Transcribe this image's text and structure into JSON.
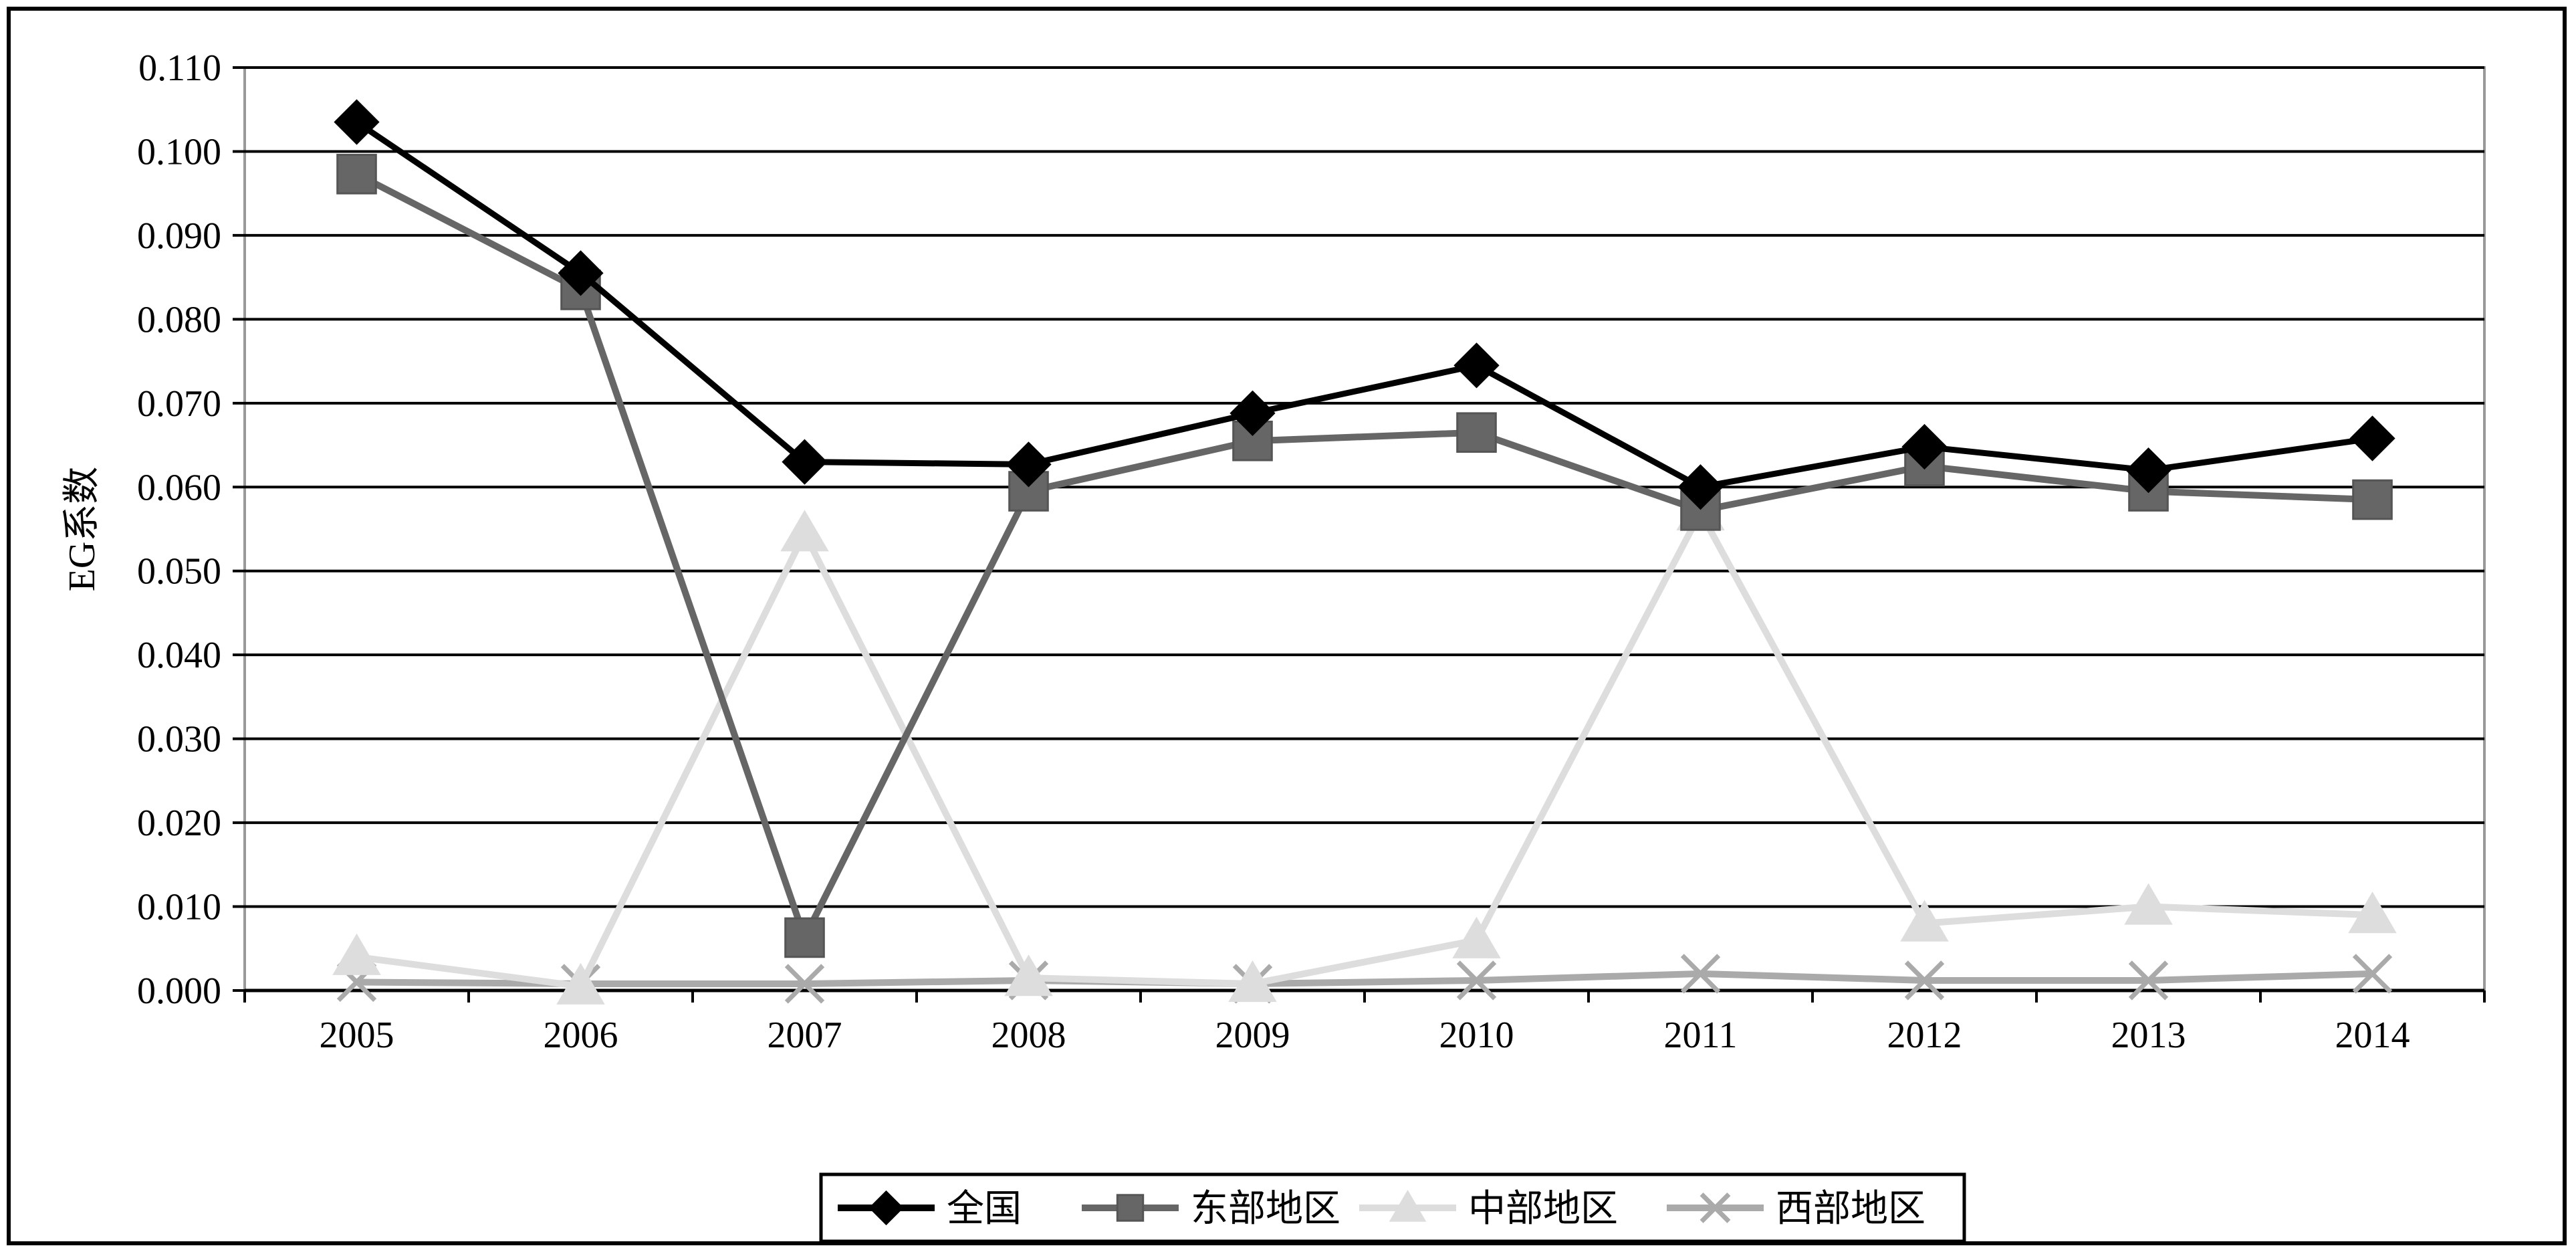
{
  "chart_data": {
    "type": "line",
    "title": "",
    "xlabel": "",
    "ylabel": "EG系数",
    "categories": [
      "2005",
      "2006",
      "2007",
      "2008",
      "2009",
      "2010",
      "2011",
      "2012",
      "2013",
      "2014"
    ],
    "y_ticks": [
      "0.000",
      "0.010",
      "0.020",
      "0.030",
      "0.040",
      "0.050",
      "0.060",
      "0.070",
      "0.080",
      "0.090",
      "0.100",
      "0.110"
    ],
    "ylim": [
      0,
      0.11
    ],
    "grid": true,
    "legend_position": "bottom",
    "series": [
      {
        "name": "全国",
        "marker": "diamond",
        "color": "#000000",
        "values": [
          0.1035,
          0.0855,
          0.063,
          0.0627,
          0.0688,
          0.0745,
          0.06,
          0.0648,
          0.062,
          0.0658
        ]
      },
      {
        "name": "东部地区",
        "marker": "square",
        "color": "#666666",
        "values": [
          0.0973,
          0.0835,
          0.0063,
          0.0595,
          0.0655,
          0.0665,
          0.0572,
          0.0625,
          0.0595,
          0.0585
        ]
      },
      {
        "name": "中部地区",
        "marker": "triangle",
        "color": "#dddddd",
        "values": [
          0.004,
          0.0005,
          0.0545,
          0.0015,
          0.0008,
          0.006,
          0.057,
          0.008,
          0.01,
          0.009
        ]
      },
      {
        "name": "西部地区",
        "marker": "x",
        "color": "#aaaaaa",
        "values": [
          0.001,
          0.0008,
          0.0008,
          0.0012,
          0.0008,
          0.0012,
          0.002,
          0.0012,
          0.0012,
          0.002
        ]
      }
    ]
  }
}
